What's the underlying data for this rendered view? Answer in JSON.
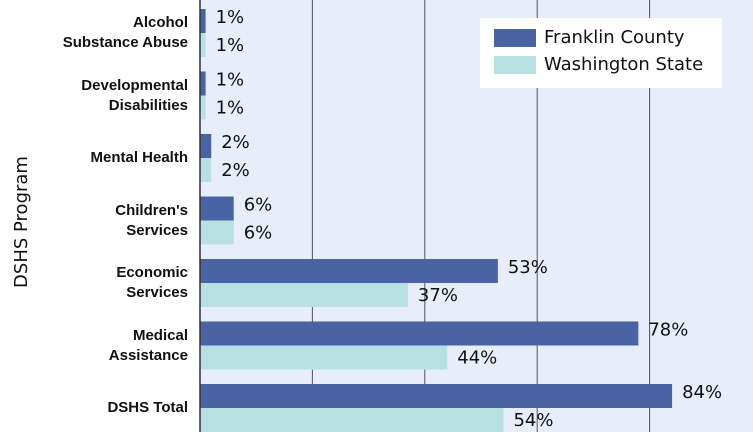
{
  "chart_data": {
    "type": "barh",
    "y_label": "DSHS Program",
    "categories": [
      "Alcohol\nSubstance Abuse",
      "Developmental\nDisabilities",
      "Mental Health",
      "Children's\nServices",
      "Economic\nServices",
      "Medical\nAssistance",
      "DSHS Total"
    ],
    "series": [
      {
        "name": "Franklin County",
        "color": "#4a63a3",
        "values": [
          1,
          1,
          2,
          6,
          53,
          78,
          84
        ],
        "value_labels": [
          "1%",
          "1%",
          "2%",
          "6%",
          "53%",
          "78%",
          "84%"
        ]
      },
      {
        "name": "Washington State",
        "color": "#b7e1e1",
        "values": [
          1,
          1,
          2,
          6,
          37,
          44,
          54
        ],
        "value_labels": [
          "1%",
          "1%",
          "2%",
          "6%",
          "37%",
          "44%",
          "54%"
        ]
      }
    ],
    "xlim": [
      0,
      98.4
    ],
    "xticks": [
      0,
      20,
      40,
      60,
      80
    ],
    "grid": true,
    "legend": "upper right"
  }
}
